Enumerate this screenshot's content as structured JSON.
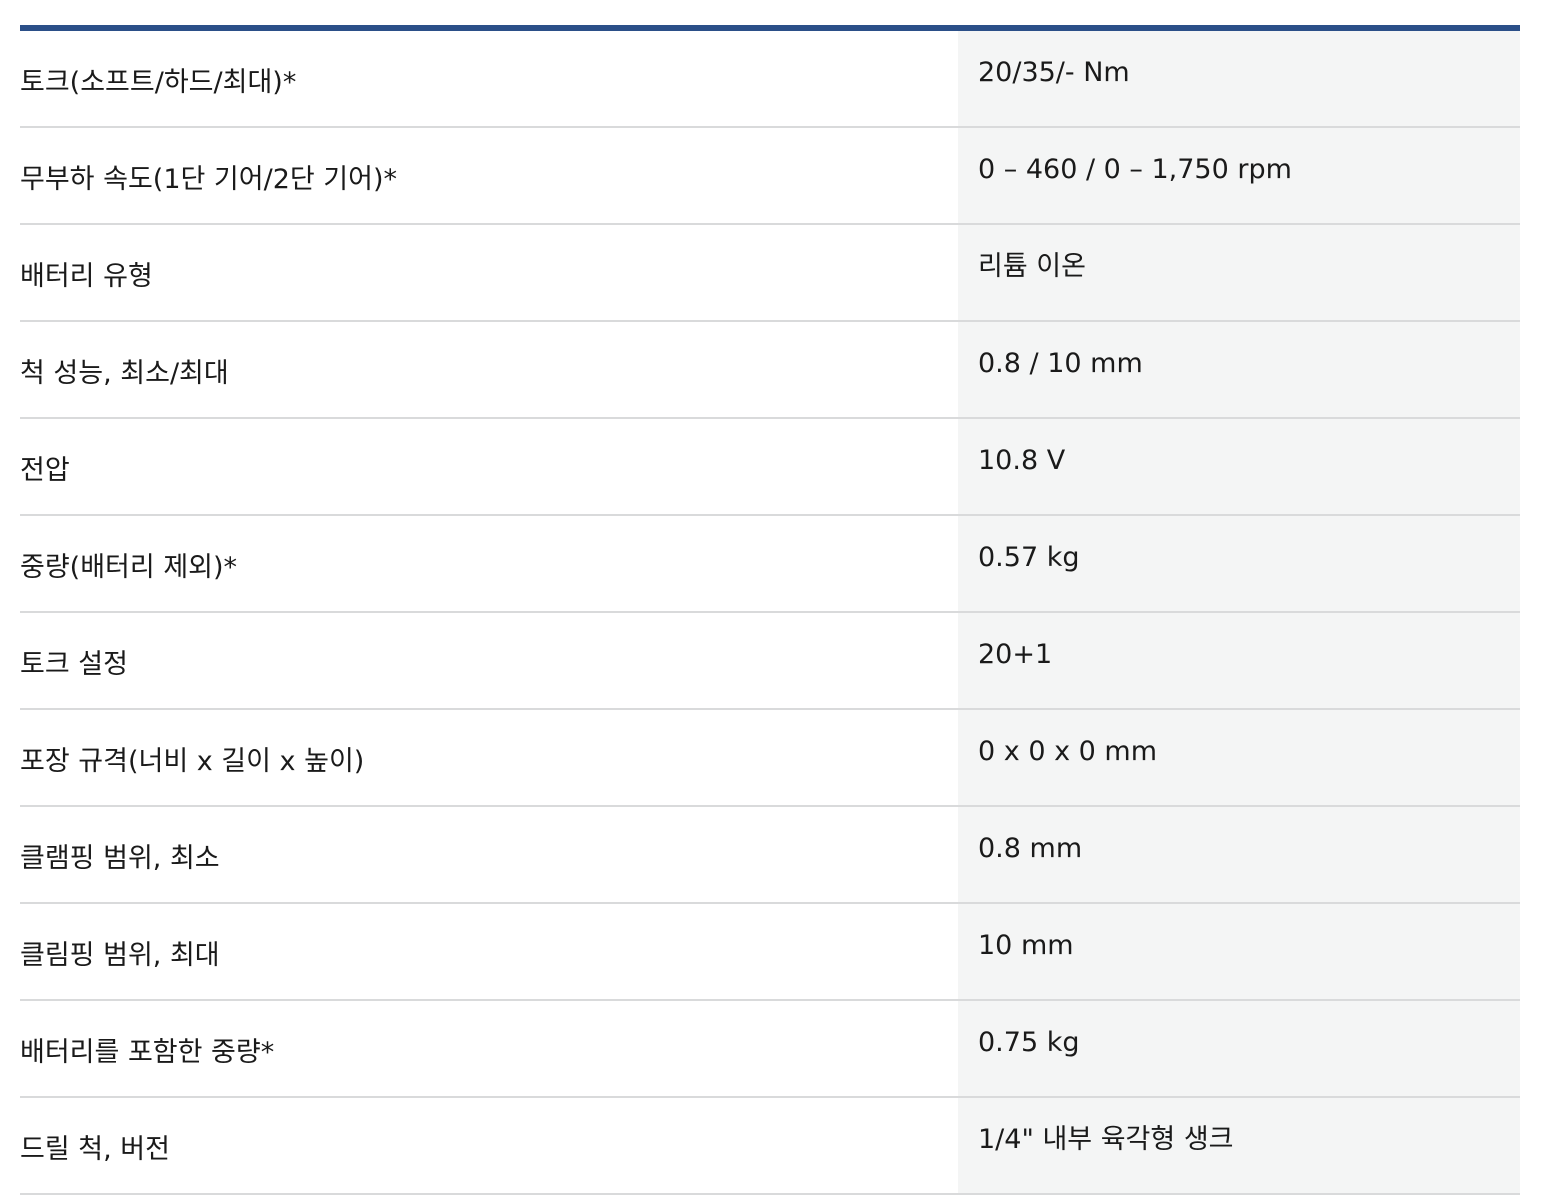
{
  "specs": [
    {
      "label": "토크(소프트/하드/최대)*",
      "value": "20/35/- Nm"
    },
    {
      "label": "무부하 속도(1단 기어/2단 기어)*",
      "value": "0 – 460 / 0 – 1,750 rpm"
    },
    {
      "label": "배터리 유형",
      "value": "리튬 이온"
    },
    {
      "label": "척 성능, 최소/최대",
      "value": "0.8 / 10 mm"
    },
    {
      "label": "전압",
      "value": "10.8 V"
    },
    {
      "label": "중량(배터리 제외)*",
      "value": "0.57 kg"
    },
    {
      "label": "토크 설정",
      "value": "20+1"
    },
    {
      "label": "포장 규격(너비 x 길이 x 높이)",
      "value": "0 x 0 x 0 mm"
    },
    {
      "label": "클램핑 범위, 최소",
      "value": "0.8 mm"
    },
    {
      "label": "클림핑 범위, 최대",
      "value": "10 mm"
    },
    {
      "label": "배터리를 포함한 중량*",
      "value": "0.75 kg"
    },
    {
      "label": "드릴 척, 버전",
      "value": "1/4\" 내부 육각형 생크"
    }
  ],
  "colors": {
    "top_border": "#2b4f88",
    "value_background": "#f4f5f5",
    "row_divider": "#d9dadb"
  }
}
